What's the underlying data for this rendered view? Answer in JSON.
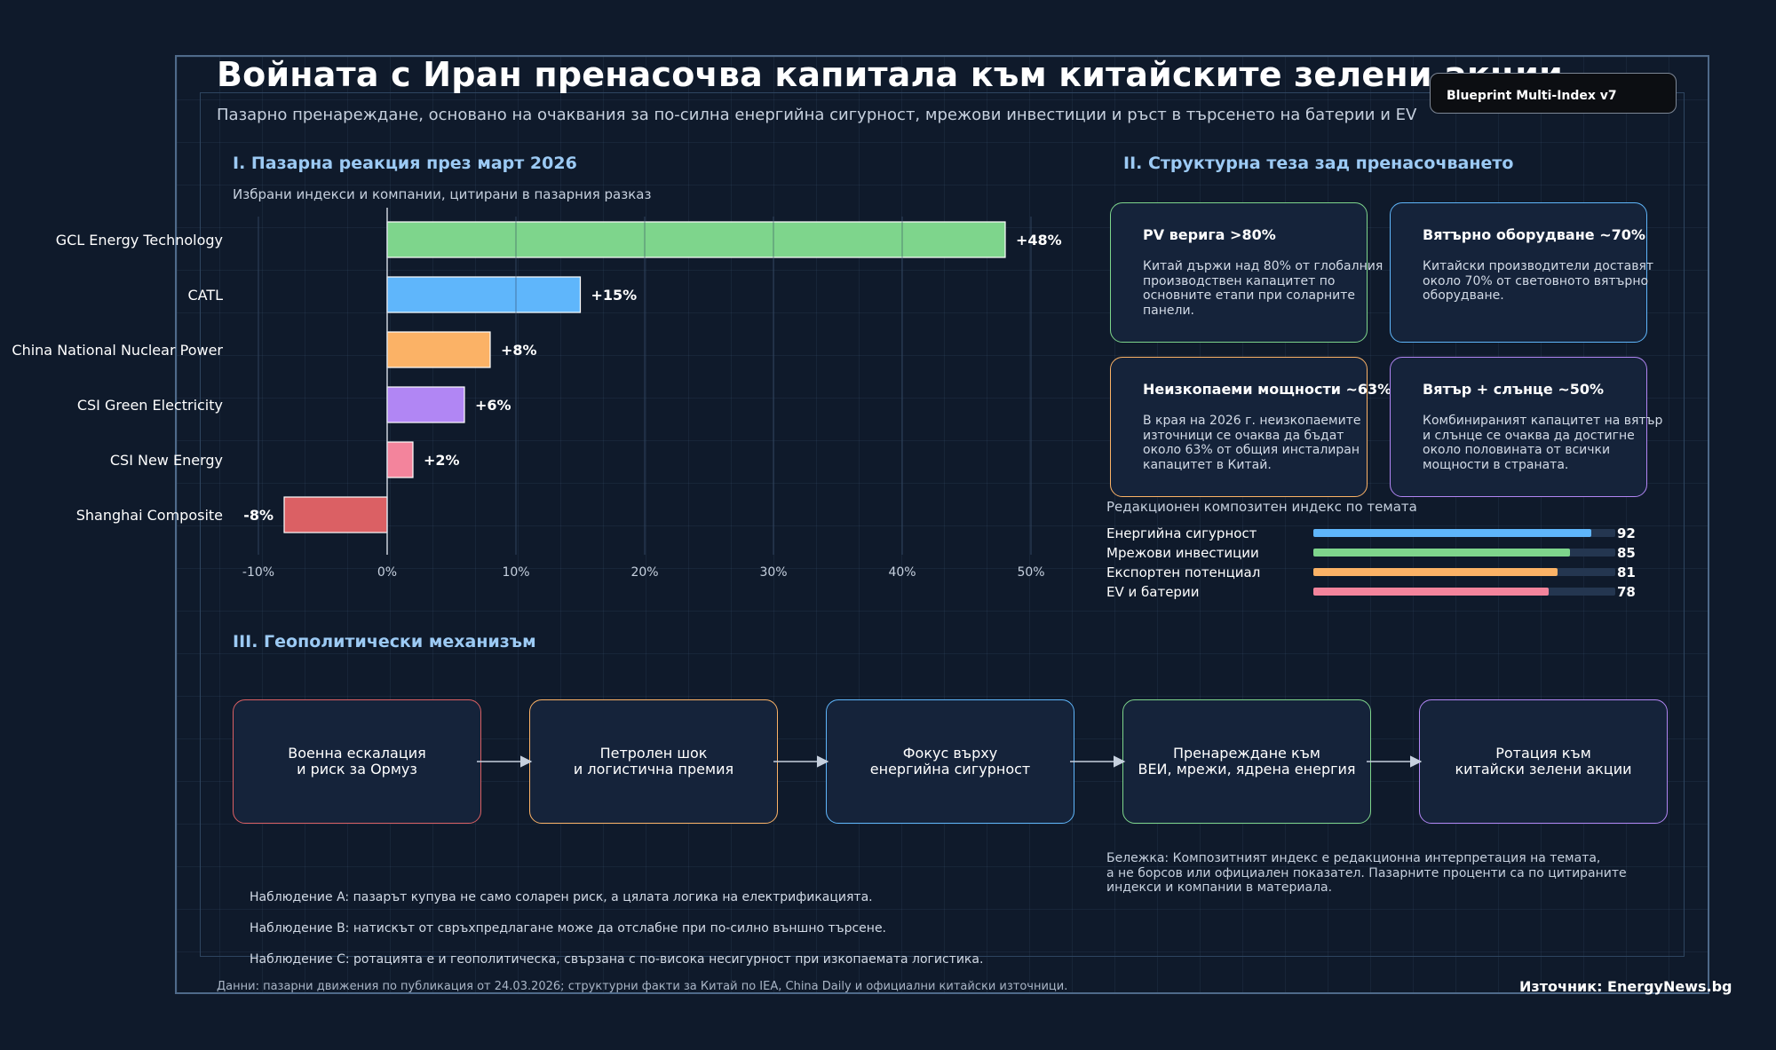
{
  "title": "Войната с Иран пренасочва капитала към китайските зелени акции",
  "subtitle": "Пазарно пренареждане, основано на очаквания за по-силна енергийна сигурност, мрежови инвестиции и ръст в търсенето на батерии и EV",
  "badge": "Blueprint Multi-Index v7",
  "section1": {
    "heading": "I. Пазарна реакция през март 2026",
    "subheading": "Избрани индекси и компании, цитирани в пазарния разказ"
  },
  "chart_data": {
    "type": "bar",
    "orientation": "horizontal",
    "categories": [
      "GCL Energy Technology",
      "CATL",
      "China National Nuclear Power",
      "CSI Green Electricity",
      "CSI New Energy",
      "Shanghai Composite"
    ],
    "values": [
      48,
      15,
      8,
      6,
      2,
      -8
    ],
    "value_labels": [
      "+48%",
      "+15%",
      "+8%",
      "+6%",
      "+2%",
      "-8%"
    ],
    "bar_colors": [
      "#7ed58c",
      "#5fb6fb",
      "#fbb266",
      "#b186f4",
      "#f3849c",
      "#db6064"
    ],
    "xlim": [
      -12,
      53
    ],
    "xticks": [
      -10,
      0,
      10,
      20,
      30,
      40,
      50
    ],
    "xtick_labels": [
      "-10%",
      "0%",
      "10%",
      "20%",
      "30%",
      "40%",
      "50%"
    ],
    "grid": "vertical"
  },
  "section2": {
    "heading": "II. Структурна теза зад пренасочването",
    "cards": [
      {
        "title": "PV верига >80%",
        "text": "Китай държи над 80% от глобалния\nпроизводствен капацитет по\nосновните етапи при соларните\nпанели.",
        "color": "#7ed58c"
      },
      {
        "title": "Вятърно оборудване ~70%",
        "text": "Китайски производители доставят\nоколо 70% от световното вятърно\nоборудване.",
        "color": "#5fb6fb"
      },
      {
        "title": "Неизкопаеми мощности ~63%",
        "text": "В края на 2026 г. неизкопаемите\nизточници се очаква да бъдат\nоколо 63% от общия инсталиран\nкапацитет в Китай.",
        "color": "#fbb266"
      },
      {
        "title": "Вятър + слънце ~50%",
        "text": "Комбинираният капацитет на вятър\nи слънце се очаква да достигне\nоколо половината от всички\nмощности в страната.",
        "color": "#b186f4"
      }
    ],
    "index_title": "Редакционен композитен индекс по темата",
    "index_rows": [
      {
        "label": "Енергийна сигурност",
        "value": 92,
        "color": "#5fb6fb"
      },
      {
        "label": "Мрежови инвестиции",
        "value": 85,
        "color": "#7ed58c"
      },
      {
        "label": "Експортен потенциал",
        "value": 81,
        "color": "#fbb266"
      },
      {
        "label": "EV и батерии",
        "value": 78,
        "color": "#f3849c"
      }
    ]
  },
  "section3": {
    "heading": "III. Геополитически механизъм",
    "steps": [
      {
        "text": "Военна ескалация\nи риск за Ормуз",
        "color": "#db6064"
      },
      {
        "text": "Петролен шок\nи логистична премия",
        "color": "#fbb266"
      },
      {
        "text": "Фокус върху\nенергийна сигурност",
        "color": "#5fb6fb"
      },
      {
        "text": "Пренареждане към\nВЕИ, мрежи, ядрена енергия",
        "color": "#7ed58c"
      },
      {
        "text": "Ротация към\nкитайски зелени акции",
        "color": "#b186f4"
      }
    ]
  },
  "note": "Бележка: Композитният индекс е редакционна интерпретация на темата,\nа не борсов или официален показател. Пазарните проценти са по цитираните\nиндекси и компании в материала.",
  "observations": [
    "Наблюдение A: пазарът купува не само соларен риск, а цялата логика на електрификацията.",
    "Наблюдение B: натискът от свръхпредлагане може да отслабне при по-силно външно търсене.",
    "Наблюдение C: ротацията е и геополитическа, свързана с по-висока несигурност при изкопаемата логистика."
  ],
  "footer": {
    "data_note": "Данни: пазарни движения по публикация от 24.03.2026; структурни факти за Китай по IEA, China Daily и официални китайски източници.",
    "source": "Източник: EnergyNews.bg"
  }
}
